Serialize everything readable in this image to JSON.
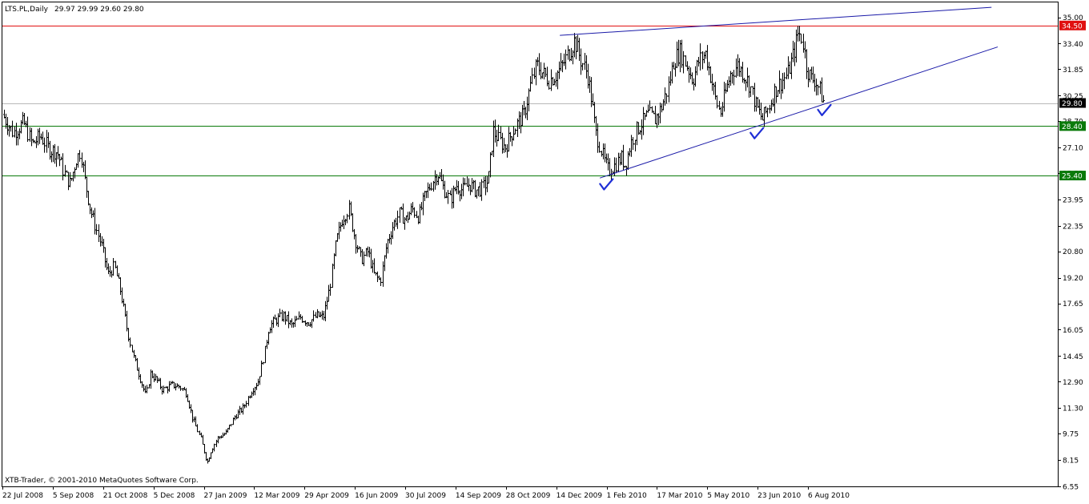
{
  "header": {
    "symbol": "LTS.PL,Daily",
    "ohlc": "29.97 29.99 29.60 29.80"
  },
  "watermark": "XTB-Trader, © 2001-2010 MetaQuotes Software Corp.",
  "colors": {
    "background": "#ffffff",
    "bars": "#000000",
    "trendline": "#1a1aa8",
    "resistance": "#e01010",
    "support": "#0a7a0a",
    "current": "#b8b8b8",
    "checkmark": "#1f2fd6"
  },
  "chart_data": {
    "type": "ohlc",
    "title": "",
    "y_axis_position": "right",
    "ylim": [
      6.55,
      35.9
    ],
    "y_ticks": [
      "35.00",
      "33.40",
      "31.85",
      "30.25",
      "28.70",
      "27.10",
      "25.55",
      "23.95",
      "22.35",
      "20.80",
      "19.20",
      "17.65",
      "16.05",
      "14.45",
      "12.90",
      "11.30",
      "9.75",
      "8.15",
      "6.55"
    ],
    "x_ticks": [
      "22 Jul 2008",
      "5 Sep 2008",
      "21 Oct 2008",
      "5 Dec 2008",
      "27 Jan 2009",
      "12 Mar 2009",
      "29 Apr 2009",
      "16 Jun 2009",
      "30 Jul 2009",
      "14 Sep 2009",
      "28 Oct 2009",
      "14 Dec 2009",
      "1 Feb 2010",
      "17 Mar 2010",
      "5 May 2010",
      "23 Jun 2010",
      "6 Aug 2010"
    ],
    "levels": [
      {
        "value": 34.5,
        "label": "34.50",
        "kind": "resistance"
      },
      {
        "value": 28.4,
        "label": "28.40",
        "kind": "support"
      },
      {
        "value": 25.4,
        "label": "25.40",
        "kind": "support"
      }
    ],
    "current_price": {
      "value": 29.8,
      "label": "29.80"
    },
    "trendlines": [
      {
        "from": [
          0.5282,
          33.9
        ],
        "to": [
          0.9372,
          35.6
        ]
      },
      {
        "from": [
          0.5661,
          25.25
        ],
        "to": [
          0.9431,
          33.2
        ]
      }
    ],
    "checkmarks": [
      [
        0.5708,
        24.7
      ],
      [
        0.7134,
        27.8
      ],
      [
        0.7773,
        29.2
      ]
    ],
    "price_path": [
      [
        0.0,
        29.1
      ],
      [
        0.01,
        28.0
      ],
      [
        0.02,
        28.6
      ],
      [
        0.028,
        27.3
      ],
      [
        0.036,
        27.8
      ],
      [
        0.044,
        27.0
      ],
      [
        0.052,
        26.8
      ],
      [
        0.058,
        25.6
      ],
      [
        0.064,
        24.9
      ],
      [
        0.07,
        26.4
      ],
      [
        0.074,
        26.9
      ],
      [
        0.078,
        25.1
      ],
      [
        0.083,
        23.4
      ],
      [
        0.088,
        22.3
      ],
      [
        0.094,
        21.1
      ],
      [
        0.1,
        19.4
      ],
      [
        0.106,
        19.9
      ],
      [
        0.112,
        18.3
      ],
      [
        0.118,
        16.1
      ],
      [
        0.124,
        14.4
      ],
      [
        0.13,
        13.2
      ],
      [
        0.136,
        12.0
      ],
      [
        0.14,
        13.4
      ],
      [
        0.146,
        13.0
      ],
      [
        0.152,
        12.4
      ],
      [
        0.16,
        12.7
      ],
      [
        0.168,
        12.6
      ],
      [
        0.174,
        12.2
      ],
      [
        0.18,
        10.7
      ],
      [
        0.188,
        9.4
      ],
      [
        0.194,
        8.0
      ],
      [
        0.198,
        8.8
      ],
      [
        0.204,
        9.5
      ],
      [
        0.212,
        9.8
      ],
      [
        0.22,
        10.8
      ],
      [
        0.228,
        11.3
      ],
      [
        0.236,
        12.4
      ],
      [
        0.242,
        12.9
      ],
      [
        0.248,
        14.6
      ],
      [
        0.252,
        16.2
      ],
      [
        0.258,
        16.6
      ],
      [
        0.266,
        16.9
      ],
      [
        0.274,
        16.3
      ],
      [
        0.282,
        16.8
      ],
      [
        0.29,
        16.5
      ],
      [
        0.298,
        16.9
      ],
      [
        0.304,
        16.8
      ],
      [
        0.31,
        18.6
      ],
      [
        0.316,
        21.4
      ],
      [
        0.322,
        22.8
      ],
      [
        0.328,
        23.4
      ],
      [
        0.334,
        21.5
      ],
      [
        0.34,
        20.3
      ],
      [
        0.346,
        20.8
      ],
      [
        0.352,
        19.4
      ],
      [
        0.358,
        19.0
      ],
      [
        0.364,
        21.3
      ],
      [
        0.37,
        22.4
      ],
      [
        0.376,
        23.1
      ],
      [
        0.382,
        22.7
      ],
      [
        0.388,
        23.4
      ],
      [
        0.394,
        22.9
      ],
      [
        0.4,
        24.1
      ],
      [
        0.406,
        24.9
      ],
      [
        0.412,
        25.6
      ],
      [
        0.418,
        24.6
      ],
      [
        0.424,
        23.9
      ],
      [
        0.43,
        24.8
      ],
      [
        0.436,
        24.5
      ],
      [
        0.442,
        24.9
      ],
      [
        0.448,
        24.5
      ],
      [
        0.454,
        24.6
      ],
      [
        0.46,
        25.1
      ],
      [
        0.465,
        28.1
      ],
      [
        0.47,
        27.6
      ],
      [
        0.476,
        27.1
      ],
      [
        0.482,
        27.9
      ],
      [
        0.488,
        28.6
      ],
      [
        0.494,
        29.1
      ],
      [
        0.5,
        30.8
      ],
      [
        0.506,
        32.1
      ],
      [
        0.512,
        31.6
      ],
      [
        0.518,
        31.2
      ],
      [
        0.524,
        31.5
      ],
      [
        0.53,
        32.0
      ],
      [
        0.536,
        32.8
      ],
      [
        0.542,
        33.6
      ],
      [
        0.548,
        32.4
      ],
      [
        0.554,
        31.6
      ],
      [
        0.558,
        30.0
      ],
      [
        0.562,
        28.0
      ],
      [
        0.566,
        27.2
      ],
      [
        0.57,
        26.3
      ],
      [
        0.574,
        25.7
      ],
      [
        0.58,
        26.0
      ],
      [
        0.586,
        26.5
      ],
      [
        0.59,
        26.0
      ],
      [
        0.595,
        27.3
      ],
      [
        0.6,
        28.1
      ],
      [
        0.606,
        28.6
      ],
      [
        0.612,
        29.1
      ],
      [
        0.618,
        28.8
      ],
      [
        0.624,
        29.5
      ],
      [
        0.63,
        30.6
      ],
      [
        0.636,
        32.4
      ],
      [
        0.642,
        32.9
      ],
      [
        0.648,
        32.1
      ],
      [
        0.654,
        31.2
      ],
      [
        0.66,
        32.4
      ],
      [
        0.666,
        32.8
      ],
      [
        0.672,
        31.1
      ],
      [
        0.676,
        29.9
      ],
      [
        0.68,
        29.2
      ],
      [
        0.684,
        30.2
      ],
      [
        0.69,
        31.6
      ],
      [
        0.696,
        32.1
      ],
      [
        0.702,
        31.6
      ],
      [
        0.708,
        30.9
      ],
      [
        0.714,
        29.6
      ],
      [
        0.72,
        28.8
      ],
      [
        0.726,
        29.6
      ],
      [
        0.732,
        30.6
      ],
      [
        0.738,
        31.1
      ],
      [
        0.744,
        31.6
      ],
      [
        0.75,
        32.9
      ],
      [
        0.754,
        34.1
      ],
      [
        0.758,
        33.6
      ],
      [
        0.762,
        31.9
      ],
      [
        0.766,
        31.3
      ],
      [
        0.77,
        31.2
      ],
      [
        0.774,
        30.6
      ],
      [
        0.778,
        29.8
      ]
    ]
  }
}
